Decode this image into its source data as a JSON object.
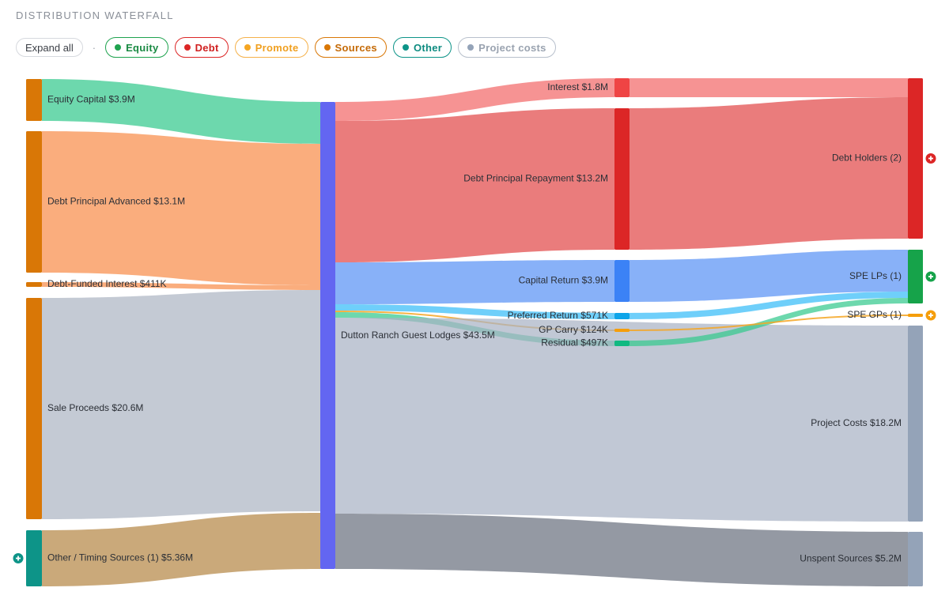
{
  "header": {
    "title": "DISTRIBUTION WATERFALL",
    "expand_label": "Expand all",
    "separator": "·"
  },
  "legend": [
    {
      "label": "Equity",
      "color": "#1fa34f",
      "border": "#1fa34f",
      "text": "#1a8a43"
    },
    {
      "label": "Debt",
      "color": "#dc2626",
      "border": "#dc2626",
      "text": "#d02020"
    },
    {
      "label": "Promote",
      "color": "#f5a623",
      "border": "#f5b14a",
      "text": "#f0a020"
    },
    {
      "label": "Sources",
      "color": "#d97706",
      "border": "#d97706",
      "text": "#c56a06"
    },
    {
      "label": "Other",
      "color": "#0d9488",
      "border": "#0d9488",
      "text": "#0d8b80"
    },
    {
      "label": "Project costs",
      "color": "#94a3b8",
      "border": "#b8c0cc",
      "text": "#9aa3b0"
    }
  ],
  "chart_data": {
    "type": "sankey",
    "title": "DISTRIBUTION WATERFALL",
    "units": "USD",
    "nodes": [
      {
        "id": "equity_capital",
        "label": "Equity Capital $3.9M",
        "value": 3.9,
        "color": "#d97706",
        "column": 0
      },
      {
        "id": "debt_principal_advanced",
        "label": "Debt Principal Advanced $13.1M",
        "value": 13.1,
        "color": "#d97706",
        "column": 0
      },
      {
        "id": "debt_funded_interest",
        "label": "Debt-Funded Interest $411K",
        "value": 0.411,
        "color": "#d97706",
        "column": 0
      },
      {
        "id": "sale_proceeds",
        "label": "Sale Proceeds $20.6M",
        "value": 20.6,
        "color": "#d97706",
        "column": 0
      },
      {
        "id": "other_timing",
        "label": "Other / Timing Sources (1) $5.36M",
        "value": 5.36,
        "color": "#0d9488",
        "column": 0,
        "expandable": true
      },
      {
        "id": "project",
        "label": "Dutton Ranch Guest Lodges $43.5M",
        "value": 43.5,
        "color": "#6366f1",
        "column": 1
      },
      {
        "id": "interest",
        "label": "Interest $1.8M",
        "value": 1.8,
        "color": "#ef4444",
        "column": 2
      },
      {
        "id": "debt_principal_repayment",
        "label": "Debt Principal Repayment $13.2M",
        "value": 13.2,
        "color": "#dc2626",
        "column": 2
      },
      {
        "id": "capital_return",
        "label": "Capital Return $3.9M",
        "value": 3.9,
        "color": "#3b82f6",
        "column": 2
      },
      {
        "id": "preferred_return",
        "label": "Preferred Return $571K",
        "value": 0.571,
        "color": "#0ea5e9",
        "column": 2
      },
      {
        "id": "gp_carry",
        "label": "GP Carry $124K",
        "value": 0.124,
        "color": "#f59e0b",
        "column": 2
      },
      {
        "id": "residual",
        "label": "Residual $497K",
        "value": 0.497,
        "color": "#10b981",
        "column": 2
      },
      {
        "id": "debt_holders",
        "label": "Debt Holders (2)",
        "value": 15.0,
        "color": "#dc2626",
        "column": 3,
        "expandable": true
      },
      {
        "id": "spe_lps",
        "label": "SPE LPs (1)",
        "value": 4.968,
        "color": "#16a34a",
        "column": 3,
        "expandable": true
      },
      {
        "id": "spe_gps",
        "label": "SPE GPs (1)",
        "value": 0.124,
        "color": "#f59e0b",
        "column": 3,
        "expandable": true
      },
      {
        "id": "project_costs",
        "label": "Project Costs $18.2M",
        "value": 18.2,
        "color": "#94a3b8",
        "column": 3
      },
      {
        "id": "unspent_sources",
        "label": "Unspent Sources $5.2M",
        "value": 5.2,
        "color": "#94a3b8",
        "column": 3
      }
    ],
    "links": [
      {
        "source": "equity_capital",
        "target": "project",
        "value": 3.9,
        "color": "#34c98e"
      },
      {
        "source": "debt_principal_advanced",
        "target": "project",
        "value": 13.1,
        "color": "#f88d4b"
      },
      {
        "source": "debt_funded_interest",
        "target": "project",
        "value": 0.411,
        "color": "#f88d4b"
      },
      {
        "source": "sale_proceeds",
        "target": "project",
        "value": 20.6,
        "color": "#adb5c4"
      },
      {
        "source": "other_timing",
        "target": "project",
        "value": 5.36,
        "color": "#b68847"
      },
      {
        "source": "project",
        "target": "interest",
        "value": 1.8,
        "color": "#f26a6a"
      },
      {
        "source": "project",
        "target": "debt_principal_repayment",
        "value": 13.2,
        "color": "#e24a4a"
      },
      {
        "source": "project",
        "target": "capital_return",
        "value": 3.9,
        "color": "#5a93f5"
      },
      {
        "source": "project",
        "target": "preferred_return",
        "value": 0.571,
        "color": "#38bdf8"
      },
      {
        "source": "project",
        "target": "gp_carry",
        "value": 0.124,
        "color": "#f5a623"
      },
      {
        "source": "project",
        "target": "residual",
        "value": 0.497,
        "color": "#34c98e"
      },
      {
        "source": "project",
        "target": "project_costs",
        "value": 18.2,
        "color": "#a9b3c5"
      },
      {
        "source": "project",
        "target": "unspent_sources",
        "value": 5.2,
        "color": "#6b7280"
      },
      {
        "source": "interest",
        "target": "debt_holders",
        "value": 1.8,
        "color": "#f26a6a"
      },
      {
        "source": "debt_principal_repayment",
        "target": "debt_holders",
        "value": 13.2,
        "color": "#e24a4a"
      },
      {
        "source": "capital_return",
        "target": "spe_lps",
        "value": 3.9,
        "color": "#5a93f5"
      },
      {
        "source": "preferred_return",
        "target": "spe_lps",
        "value": 0.571,
        "color": "#38bdf8"
      },
      {
        "source": "residual",
        "target": "spe_lps",
        "value": 0.497,
        "color": "#34c98e"
      },
      {
        "source": "gp_carry",
        "target": "spe_gps",
        "value": 0.124,
        "color": "#f5a623"
      }
    ]
  }
}
